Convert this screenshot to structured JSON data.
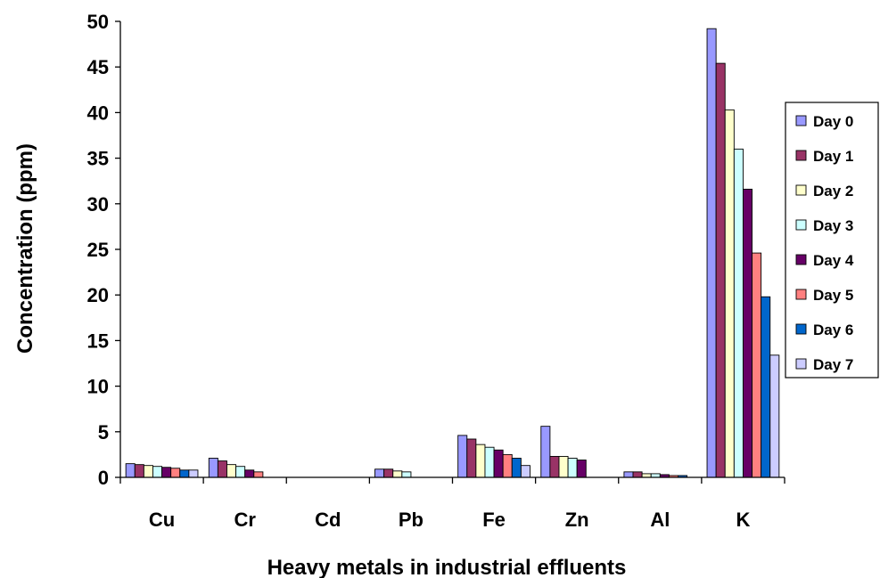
{
  "chart_data": {
    "type": "bar",
    "title": "",
    "xlabel": "Heavy metals in industrial effluents",
    "ylabel": "Concentration (ppm)",
    "ylim": [
      0,
      50
    ],
    "yticks": [
      0,
      5,
      10,
      15,
      20,
      25,
      30,
      35,
      40,
      45,
      50
    ],
    "categories": [
      "Cu",
      "Cr",
      "Cd",
      "Pb",
      "Fe",
      "Zn",
      "Al",
      "K"
    ],
    "grid": false,
    "legend_position": "right",
    "series": [
      {
        "name": "Day 0",
        "color": "#9999ff",
        "values": [
          1.5,
          2.1,
          0,
          0.9,
          4.6,
          5.6,
          0.6,
          49.2
        ]
      },
      {
        "name": "Day 1",
        "color": "#993366",
        "values": [
          1.4,
          1.8,
          0,
          0.9,
          4.2,
          2.3,
          0.6,
          45.4
        ]
      },
      {
        "name": "Day 2",
        "color": "#ffffcc",
        "values": [
          1.3,
          1.4,
          0,
          0.7,
          3.6,
          2.3,
          0.4,
          40.3
        ]
      },
      {
        "name": "Day 3",
        "color": "#ccffff",
        "values": [
          1.2,
          1.2,
          0,
          0.6,
          3.3,
          2.1,
          0.4,
          36.0
        ]
      },
      {
        "name": "Day 4",
        "color": "#660066",
        "values": [
          1.1,
          0.8,
          0,
          0,
          3.0,
          1.9,
          0.3,
          31.6
        ]
      },
      {
        "name": "Day 5",
        "color": "#ff8080",
        "values": [
          1.0,
          0.6,
          0,
          0,
          2.5,
          0,
          0.2,
          24.6
        ]
      },
      {
        "name": "Day 6",
        "color": "#0066cc",
        "values": [
          0.8,
          0,
          0,
          0,
          2.1,
          0,
          0.2,
          19.8
        ]
      },
      {
        "name": "Day 7",
        "color": "#ccccff",
        "values": [
          0.8,
          0,
          0,
          0,
          1.3,
          0,
          0,
          13.4
        ]
      }
    ]
  }
}
